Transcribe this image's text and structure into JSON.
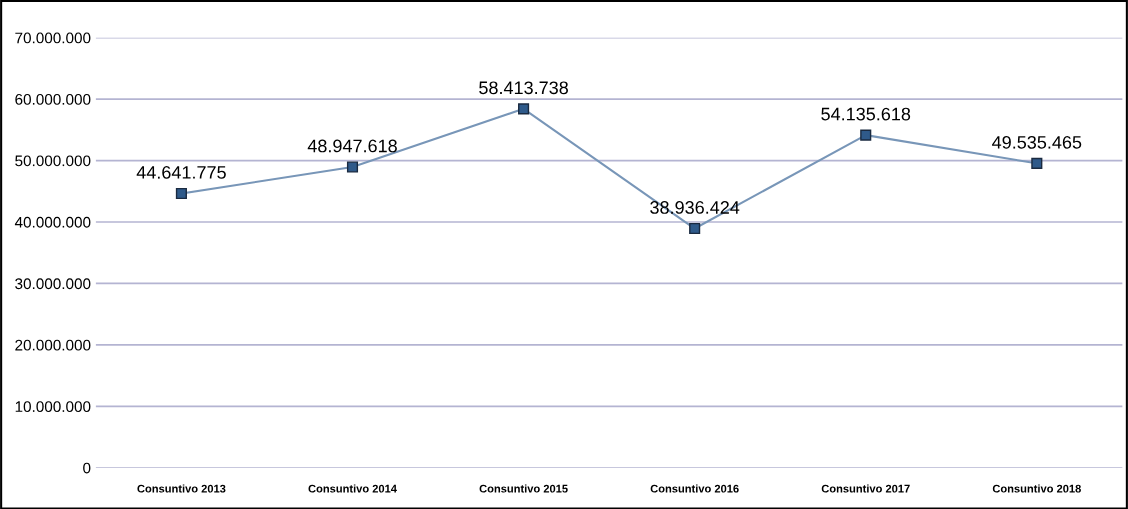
{
  "chart_data": {
    "type": "line",
    "categories": [
      "Consuntivo 2013",
      "Consuntivo 2014",
      "Consuntivo 2015",
      "Consuntivo 2016",
      "Consuntivo 2017",
      "Consuntivo 2018"
    ],
    "series": [
      {
        "color": "#7896b8",
        "values": [
          44641775,
          48947618,
          58413738,
          38936424,
          54135618,
          49535465
        ]
      }
    ],
    "value_labels": [
      "44.641.775",
      "48.947.618",
      "58.413.738",
      "38.936.424",
      "54.135.618",
      "49.535.465"
    ],
    "marker": "square",
    "line_style": "solid",
    "grid": "y",
    "legend": false,
    "ylim": [
      0,
      70000000
    ],
    "yticks": [
      {
        "value": 0,
        "label": "0"
      },
      {
        "value": 10000000,
        "label": "10.000.000"
      },
      {
        "value": 20000000,
        "label": "20.000.000"
      },
      {
        "value": 30000000,
        "label": "30.000.000"
      },
      {
        "value": 40000000,
        "label": "40.000.000"
      },
      {
        "value": 50000000,
        "label": "50.000.000"
      },
      {
        "value": 60000000,
        "label": "60.000.000"
      },
      {
        "value": 70000000,
        "label": "70.000.000"
      }
    ]
  }
}
